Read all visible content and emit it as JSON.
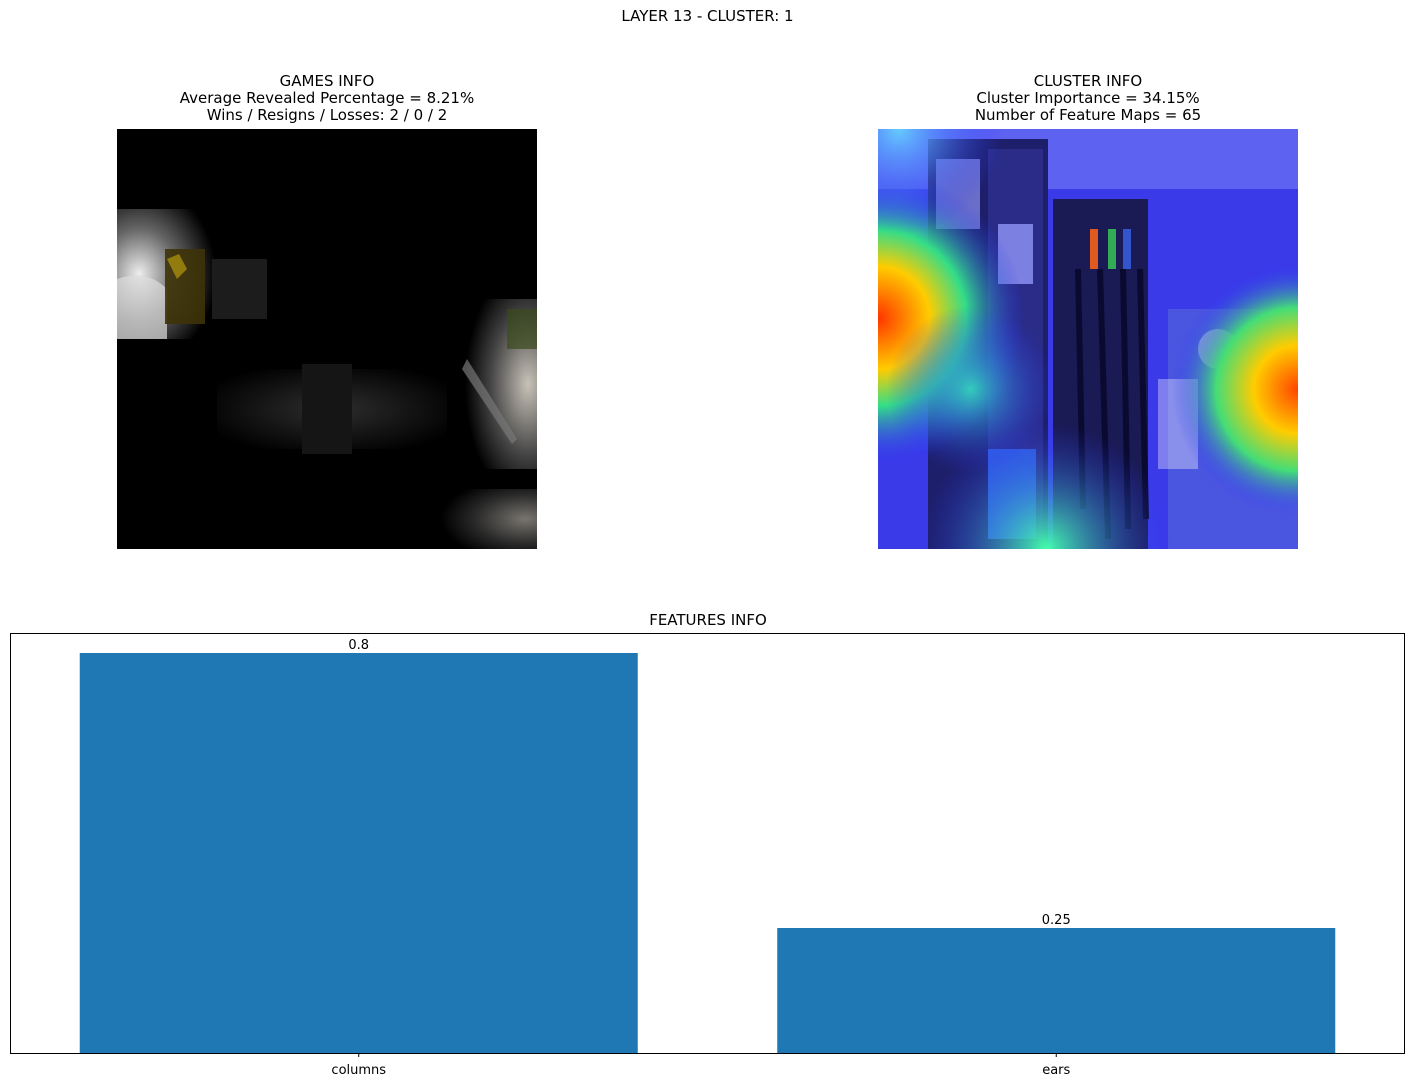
{
  "figure": {
    "title": "LAYER 13 - CLUSTER: 1"
  },
  "games_info": {
    "title": "GAMES INFO",
    "line1": "Average Revealed Percentage = 8.21%",
    "line2": "Wins / Resigns / Losses: 2 / 0 / 2"
  },
  "cluster_info": {
    "title": "CLUSTER INFO",
    "line1": "Cluster Importance = 34.15%",
    "line2": "Number of Feature Maps = 65"
  },
  "features_info": {
    "title": "FEATURES INFO"
  },
  "colors": {
    "bar": "#1f77b4",
    "axis": "#000000"
  },
  "chart_data": {
    "type": "bar",
    "title": "FEATURES INFO",
    "categories": [
      "columns",
      "ears"
    ],
    "values": [
      0.8,
      0.25
    ],
    "data_labels": [
      "0.8",
      "0.25"
    ],
    "xlabel": "",
    "ylabel": "",
    "ylim": [
      0,
      0.84
    ],
    "y_ticks_visible": false,
    "grid": false
  }
}
